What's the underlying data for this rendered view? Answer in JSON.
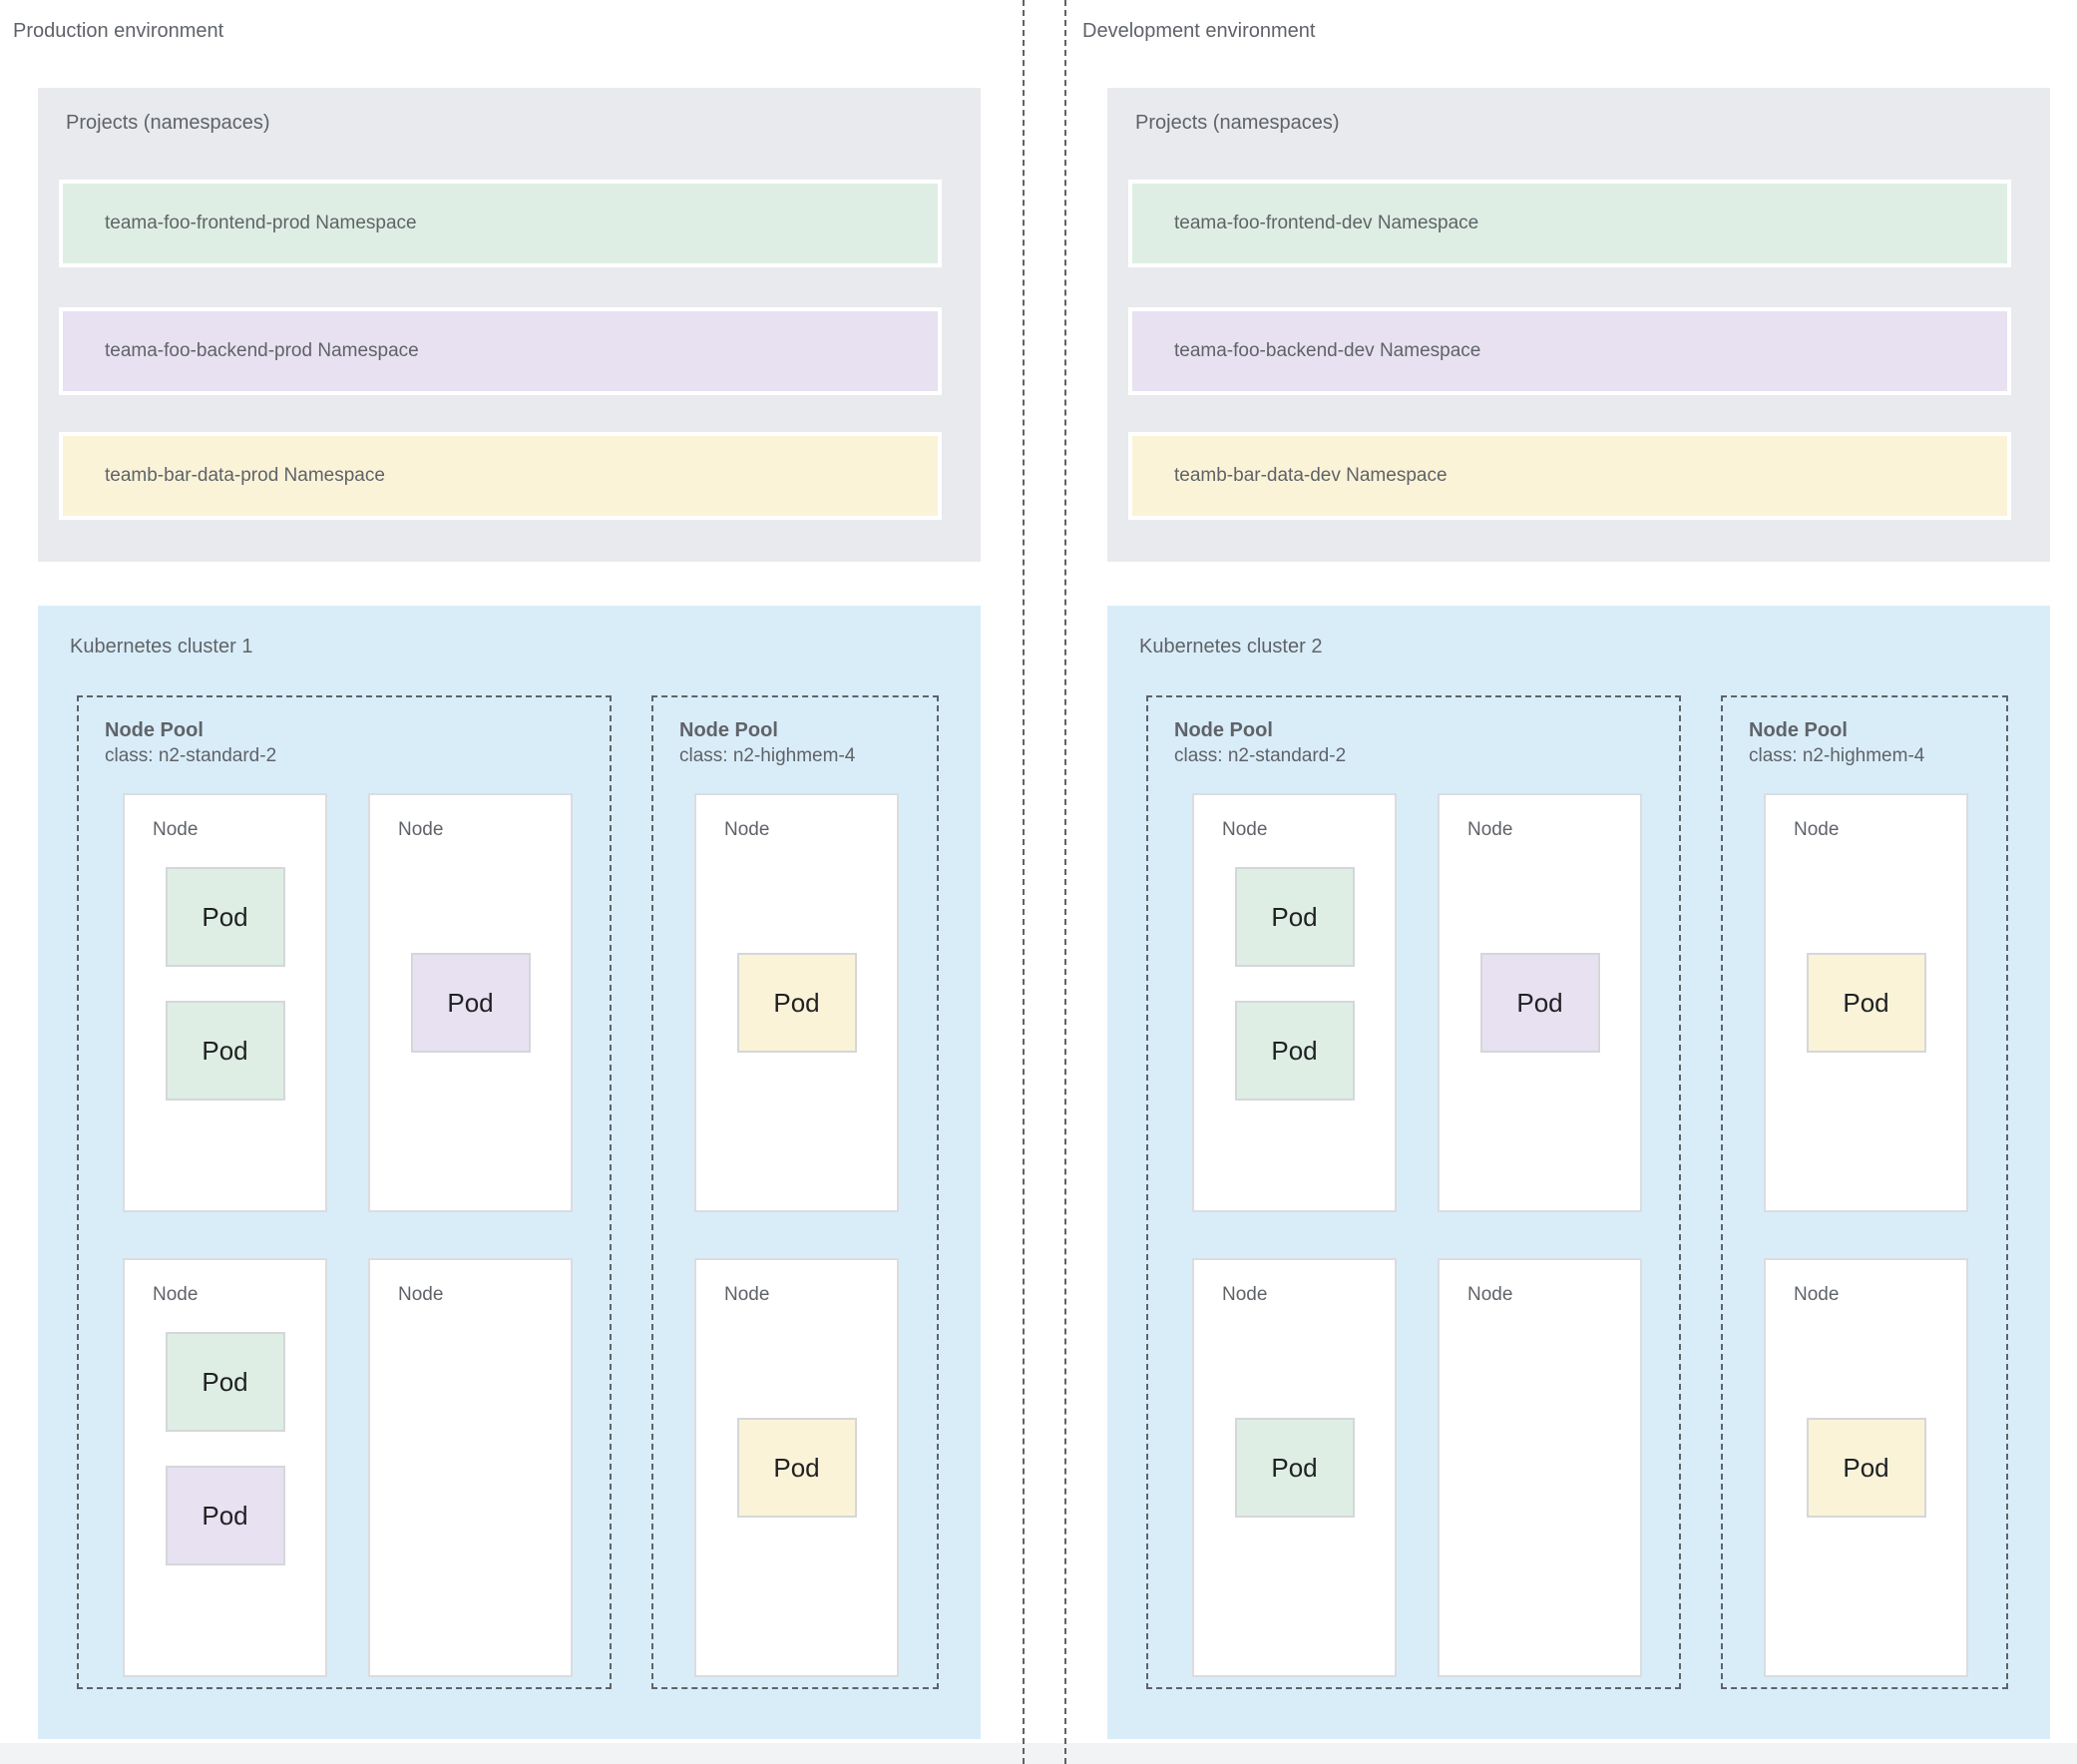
{
  "colors": {
    "frontend_green": "#deeee4",
    "backend_purple": "#e8e1f1",
    "data_yellow": "#fbf3d8",
    "cluster_blue": "#d9edf9",
    "projects_gray": "#e8eaed",
    "node_white": "#ffffff",
    "divider_gray": "#5f6368",
    "bottom_strip": "#f1f3f4"
  },
  "environments": [
    {
      "label": "Production environment",
      "projects": {
        "title": "Projects (namespaces)",
        "namespaces": [
          {
            "label": "teama-foo-frontend-prod Namespace",
            "color": "#deeee4"
          },
          {
            "label": "teama-foo-backend-prod Namespace",
            "color": "#e8e1f1"
          },
          {
            "label": "teamb-bar-data-prod Namespace",
            "color": "#fbf3d8"
          }
        ]
      },
      "cluster": {
        "label": "Kubernetes cluster 1",
        "pools": [
          {
            "title": "Node Pool",
            "class_label": "class: n2-standard-2",
            "nodes": [
              {
                "label": "Node",
                "layout": "stack",
                "pods": [
                  {
                    "label": "Pod",
                    "color": "#deeee4"
                  },
                  {
                    "label": "Pod",
                    "color": "#deeee4"
                  }
                ]
              },
              {
                "label": "Node",
                "layout": "center",
                "pods": [
                  {
                    "label": "Pod",
                    "color": "#e8e1f1"
                  }
                ]
              },
              {
                "label": "Node",
                "layout": "stack",
                "pods": [
                  {
                    "label": "Pod",
                    "color": "#deeee4"
                  },
                  {
                    "label": "Pod",
                    "color": "#e8e1f1"
                  }
                ]
              },
              {
                "label": "Node",
                "layout": "center",
                "pods": []
              }
            ]
          },
          {
            "title": "Node Pool",
            "class_label": "class: n2-highmem-4",
            "nodes": [
              {
                "label": "Node",
                "layout": "center",
                "pods": [
                  {
                    "label": "Pod",
                    "color": "#fbf3d8"
                  }
                ]
              },
              {
                "label": "Node",
                "layout": "center",
                "pods": [
                  {
                    "label": "Pod",
                    "color": "#fbf3d8"
                  }
                ]
              }
            ]
          }
        ]
      }
    },
    {
      "label": "Development environment",
      "projects": {
        "title": "Projects (namespaces)",
        "namespaces": [
          {
            "label": "teama-foo-frontend-dev Namespace",
            "color": "#deeee4"
          },
          {
            "label": "teama-foo-backend-dev Namespace",
            "color": "#e8e1f1"
          },
          {
            "label": "teamb-bar-data-dev Namespace",
            "color": "#fbf3d8"
          }
        ]
      },
      "cluster": {
        "label": "Kubernetes cluster 2",
        "pools": [
          {
            "title": "Node Pool",
            "class_label": "class: n2-standard-2",
            "nodes": [
              {
                "label": "Node",
                "layout": "stack",
                "pods": [
                  {
                    "label": "Pod",
                    "color": "#deeee4"
                  },
                  {
                    "label": "Pod",
                    "color": "#deeee4"
                  }
                ]
              },
              {
                "label": "Node",
                "layout": "center",
                "pods": [
                  {
                    "label": "Pod",
                    "color": "#e8e1f1"
                  }
                ]
              },
              {
                "label": "Node",
                "layout": "center",
                "pods": [
                  {
                    "label": "Pod",
                    "color": "#deeee4"
                  }
                ]
              },
              {
                "label": "Node",
                "layout": "center",
                "pods": []
              }
            ]
          },
          {
            "title": "Node Pool",
            "class_label": "class: n2-highmem-4",
            "nodes": [
              {
                "label": "Node",
                "layout": "center",
                "pods": [
                  {
                    "label": "Pod",
                    "color": "#fbf3d8"
                  }
                ]
              },
              {
                "label": "Node",
                "layout": "center",
                "pods": [
                  {
                    "label": "Pod",
                    "color": "#fbf3d8"
                  }
                ]
              }
            ]
          }
        ]
      }
    }
  ]
}
